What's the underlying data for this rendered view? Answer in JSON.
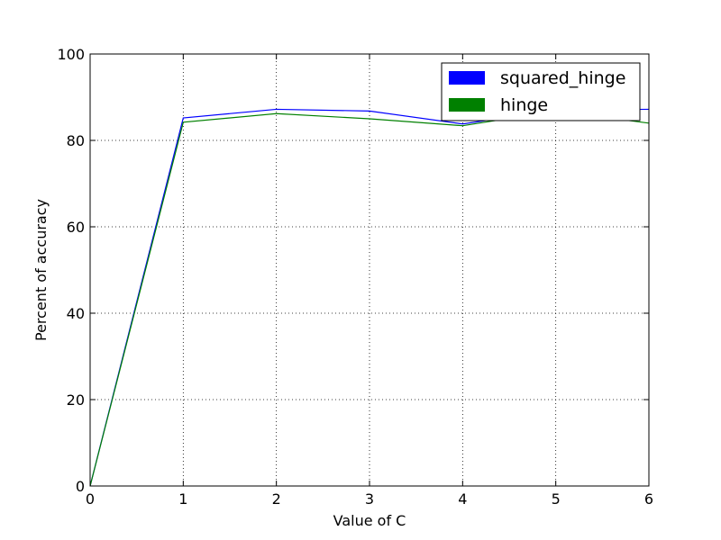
{
  "chart_data": {
    "type": "line",
    "xlabel": "Value of C",
    "ylabel": "Percent of accuracy",
    "xlim": [
      0,
      6
    ],
    "ylim": [
      0,
      100
    ],
    "xticks": [
      "0",
      "1",
      "2",
      "3",
      "4",
      "5",
      "6"
    ],
    "yticks": [
      "0",
      "20",
      "40",
      "60",
      "80",
      "100"
    ],
    "grid": true,
    "legend": "top-right",
    "series": [
      {
        "name": "squared_hinge",
        "color": "#0000ff",
        "x": [
          0,
          1,
          2,
          3,
          4,
          5,
          6
        ],
        "y": [
          0,
          85.2,
          87.2,
          86.8,
          83.8,
          87.0,
          87.2
        ]
      },
      {
        "name": "hinge",
        "color": "#008000",
        "x": [
          0,
          1,
          2,
          3,
          4,
          5,
          6
        ],
        "y": [
          0,
          84.2,
          86.2,
          85.0,
          83.4,
          86.8,
          84.0
        ]
      }
    ]
  }
}
